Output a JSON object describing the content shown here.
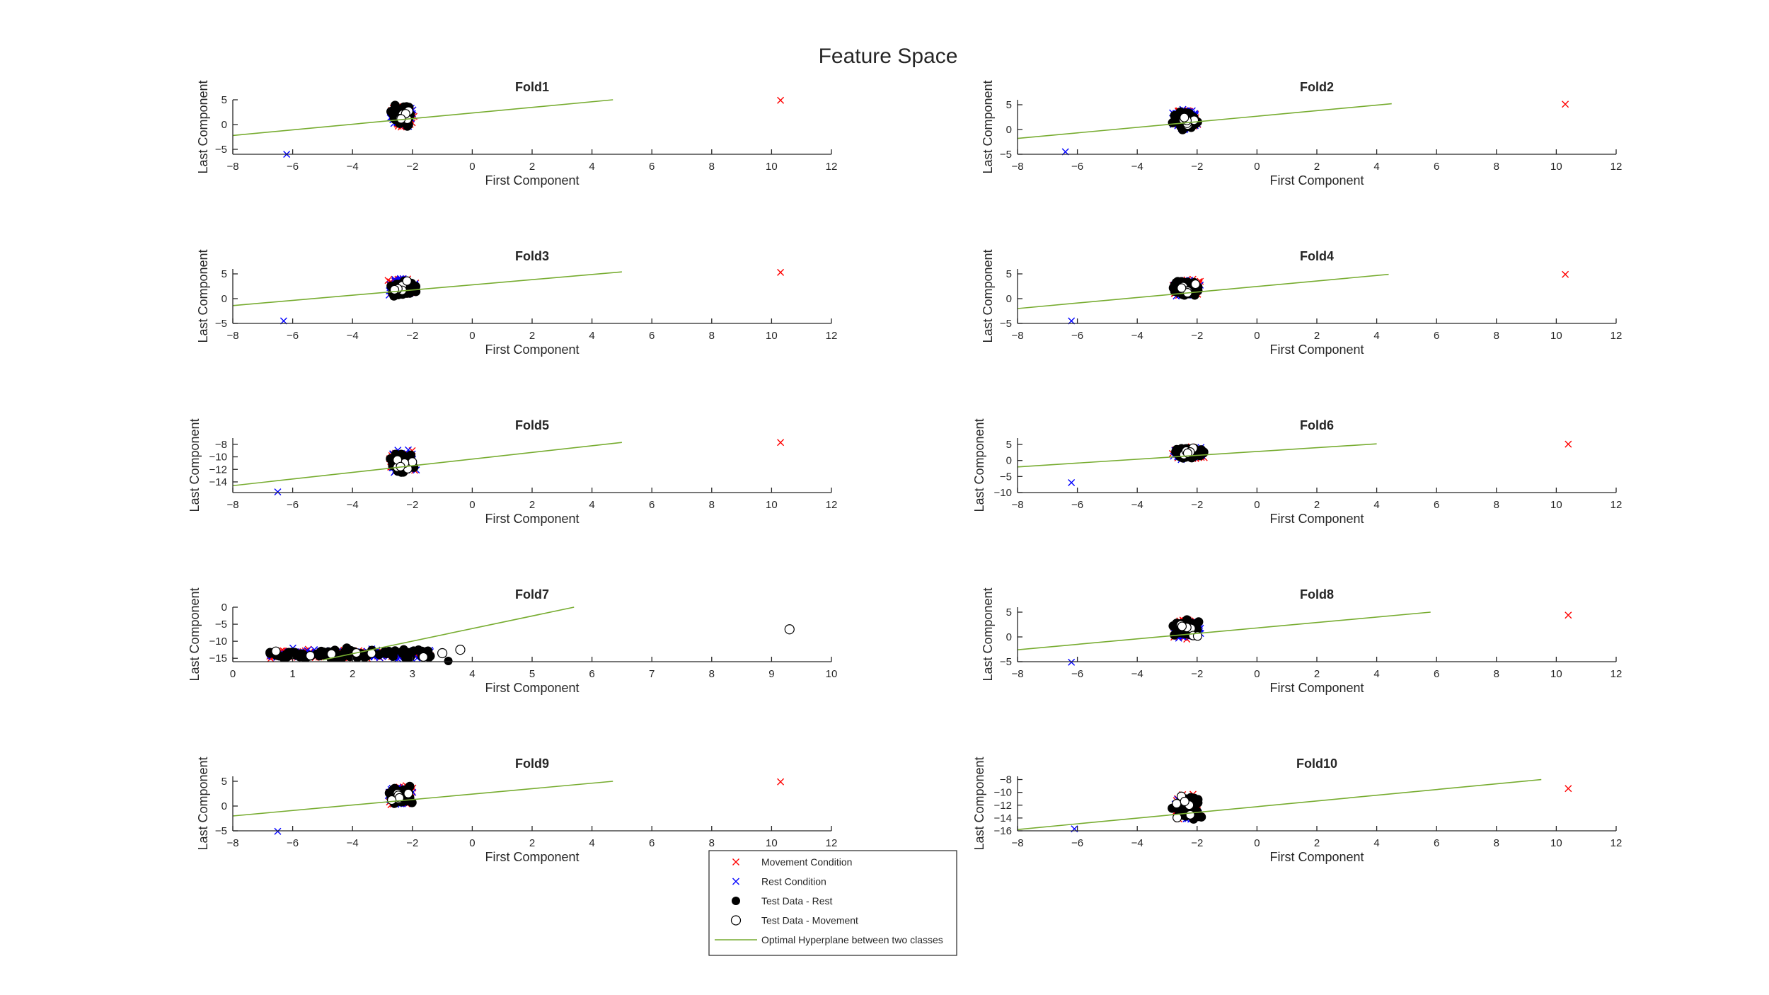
{
  "figure": {
    "title": "Feature Space"
  },
  "legend": {
    "entries": [
      {
        "label": "Movement Condition",
        "marker": "x",
        "color": "#ff0000"
      },
      {
        "label": "Rest Condition",
        "marker": "x",
        "color": "#0000ff"
      },
      {
        "label": "Test Data - Rest",
        "marker": "filled-circle",
        "color": "#000000"
      },
      {
        "label": "Test Data - Movement",
        "marker": "open-circle",
        "color": "#000000"
      },
      {
        "label": "Optimal Hyperplane between two classes",
        "marker": "line",
        "color": "#77ac30"
      }
    ]
  },
  "colors": {
    "movement": "#ff0000",
    "rest": "#0000ff",
    "test": "#000000",
    "hyperplane": "#77ac30"
  },
  "chart_data": [
    {
      "type": "scatter",
      "title": "Fold1",
      "xlabel": "First Component",
      "ylabel": "Last Component",
      "xlim": [
        -8,
        12
      ],
      "ylim": [
        -6,
        5
      ],
      "xticks": [
        -8,
        -6,
        -4,
        -2,
        0,
        2,
        4,
        6,
        8,
        10,
        12
      ],
      "yticks": [
        -5,
        0,
        5
      ],
      "cluster": {
        "x": [
          -2.8,
          -1.9
        ],
        "y": [
          -0.5,
          4
        ]
      },
      "outliers": [
        {
          "x": 10.3,
          "y": 4.9,
          "class": "movement"
        },
        {
          "x": -6.2,
          "y": -6,
          "class": "rest"
        }
      ],
      "hyperplane": {
        "x": [
          -8,
          4.7
        ],
        "y": [
          -2.2,
          5.0
        ]
      }
    },
    {
      "type": "scatter",
      "title": "Fold2",
      "xlabel": "First Component",
      "ylabel": "Last Component",
      "xlim": [
        -8,
        12
      ],
      "ylim": [
        -5,
        6
      ],
      "xticks": [
        -8,
        -6,
        -4,
        -2,
        0,
        2,
        4,
        6,
        8,
        10,
        12
      ],
      "yticks": [
        -5,
        0,
        5
      ],
      "cluster": {
        "x": [
          -2.9,
          -1.9
        ],
        "y": [
          -0.2,
          4.2
        ]
      },
      "outliers": [
        {
          "x": 10.3,
          "y": 5.1,
          "class": "movement"
        },
        {
          "x": -6.4,
          "y": -4.5,
          "class": "rest"
        }
      ],
      "hyperplane": {
        "x": [
          -8,
          4.5
        ],
        "y": [
          -1.8,
          5.2
        ]
      }
    },
    {
      "type": "scatter",
      "title": "Fold3",
      "xlabel": "First Component",
      "ylabel": "Last Component",
      "xlim": [
        -8,
        12
      ],
      "ylim": [
        -5,
        6
      ],
      "xticks": [
        -8,
        -6,
        -4,
        -2,
        0,
        2,
        4,
        6,
        8,
        10,
        12
      ],
      "yticks": [
        -5,
        0,
        5
      ],
      "cluster": {
        "x": [
          -2.9,
          -1.8
        ],
        "y": [
          0.3,
          4.3
        ]
      },
      "outliers": [
        {
          "x": 10.3,
          "y": 5.3,
          "class": "movement"
        },
        {
          "x": -6.3,
          "y": -4.5,
          "class": "rest"
        }
      ],
      "hyperplane": {
        "x": [
          -8,
          5.0
        ],
        "y": [
          -1.4,
          5.4
        ]
      }
    },
    {
      "type": "scatter",
      "title": "Fold4",
      "xlabel": "First Component",
      "ylabel": "Last Component",
      "xlim": [
        -8,
        12
      ],
      "ylim": [
        -5,
        6
      ],
      "xticks": [
        -8,
        -6,
        -4,
        -2,
        0,
        2,
        4,
        6,
        8,
        10,
        12
      ],
      "yticks": [
        -5,
        0,
        5
      ],
      "cluster": {
        "x": [
          -2.9,
          -1.8
        ],
        "y": [
          0.3,
          4
        ]
      },
      "outliers": [
        {
          "x": 10.3,
          "y": 4.9,
          "class": "movement"
        },
        {
          "x": -6.2,
          "y": -4.5,
          "class": "rest"
        }
      ],
      "hyperplane": {
        "x": [
          -8,
          4.4
        ],
        "y": [
          -2.0,
          4.9
        ]
      }
    },
    {
      "type": "scatter",
      "title": "Fold5",
      "xlabel": "First Component",
      "ylabel": "Last Component",
      "xlim": [
        -8,
        12
      ],
      "ylim": [
        -15.7,
        -7
      ],
      "xticks": [
        -8,
        -6,
        -4,
        -2,
        0,
        2,
        4,
        6,
        8,
        10,
        12
      ],
      "yticks": [
        -14,
        -12,
        -10,
        -8
      ],
      "cluster": {
        "x": [
          -2.9,
          -1.8
        ],
        "y": [
          -12.8,
          -8.8
        ]
      },
      "outliers": [
        {
          "x": 10.3,
          "y": -7.7,
          "class": "movement"
        },
        {
          "x": -6.5,
          "y": -15.6,
          "class": "rest"
        }
      ],
      "hyperplane": {
        "x": [
          -8,
          5.0
        ],
        "y": [
          -14.6,
          -7.7
        ]
      }
    },
    {
      "type": "scatter",
      "title": "Fold6",
      "xlabel": "First Component",
      "ylabel": "Last Component",
      "xlim": [
        -8,
        12
      ],
      "ylim": [
        -10,
        7
      ],
      "xticks": [
        -8,
        -6,
        -4,
        -2,
        0,
        2,
        4,
        6,
        8,
        10,
        12
      ],
      "yticks": [
        -10,
        -5,
        0,
        5
      ],
      "cluster": {
        "x": [
          -2.9,
          -1.7
        ],
        "y": [
          0.3,
          4.3
        ]
      },
      "outliers": [
        {
          "x": 10.4,
          "y": 5.1,
          "class": "movement"
        },
        {
          "x": -6.2,
          "y": -6.9,
          "class": "rest"
        }
      ],
      "hyperplane": {
        "x": [
          -8,
          4.0
        ],
        "y": [
          -2.0,
          5.2
        ]
      }
    },
    {
      "type": "scatter",
      "title": "Fold7",
      "xlabel": "First Component",
      "ylabel": "Last Component",
      "xlim": [
        0,
        10
      ],
      "ylim": [
        -16,
        0
      ],
      "xticks": [
        0,
        1,
        2,
        3,
        4,
        5,
        6,
        7,
        8,
        9,
        10
      ],
      "yticks": [
        -15,
        -10,
        -5,
        0
      ],
      "cluster": {
        "x": [
          0.6,
          3.3
        ],
        "y": [
          -15.5,
          -12
        ]
      },
      "outliers": [
        {
          "x": 9.3,
          "y": -6.5,
          "class": "test-movement"
        },
        {
          "x": 3.8,
          "y": -12.5,
          "class": "test-movement"
        },
        {
          "x": 3.6,
          "y": -15.8,
          "class": "test-rest"
        },
        {
          "x": 3.5,
          "y": -13.5,
          "class": "test-movement"
        }
      ],
      "hyperplane": {
        "x": [
          1.5,
          5.7
        ],
        "y": [
          -15.5,
          0
        ]
      }
    },
    {
      "type": "scatter",
      "title": "Fold8",
      "xlabel": "First Component",
      "ylabel": "Last Component",
      "xlim": [
        -8,
        12
      ],
      "ylim": [
        -5,
        6
      ],
      "xticks": [
        -8,
        -6,
        -4,
        -2,
        0,
        2,
        4,
        6,
        8,
        10,
        12
      ],
      "yticks": [
        -5,
        0,
        5
      ],
      "cluster": {
        "x": [
          -2.9,
          -1.8
        ],
        "y": [
          -0.5,
          3.7
        ]
      },
      "outliers": [
        {
          "x": 10.4,
          "y": 4.4,
          "class": "movement"
        },
        {
          "x": -6.2,
          "y": -5.1,
          "class": "rest"
        }
      ],
      "hyperplane": {
        "x": [
          -8,
          5.8
        ],
        "y": [
          -2.6,
          5.0
        ]
      }
    },
    {
      "type": "scatter",
      "title": "Fold9",
      "xlabel": "First Component",
      "ylabel": "Last Component",
      "xlim": [
        -8,
        12
      ],
      "ylim": [
        -5,
        6
      ],
      "xticks": [
        -8,
        -6,
        -4,
        -2,
        0,
        2,
        4,
        6,
        8,
        10,
        12
      ],
      "yticks": [
        -5,
        0,
        5
      ],
      "cluster": {
        "x": [
          -2.9,
          -1.9
        ],
        "y": [
          0,
          4.2
        ]
      },
      "outliers": [
        {
          "x": 10.3,
          "y": 4.9,
          "class": "movement"
        },
        {
          "x": -6.5,
          "y": -5.1,
          "class": "rest"
        }
      ],
      "hyperplane": {
        "x": [
          -8,
          4.7
        ],
        "y": [
          -2.0,
          5.0
        ]
      }
    },
    {
      "type": "scatter",
      "title": "Fold10",
      "xlabel": "First Component",
      "ylabel": "Last Component",
      "xlim": [
        -8,
        12
      ],
      "ylim": [
        -16,
        -7.5
      ],
      "xticks": [
        -8,
        -6,
        -4,
        -2,
        0,
        2,
        4,
        6,
        8,
        10,
        12
      ],
      "yticks": [
        -16,
        -14,
        -12,
        -10,
        -8
      ],
      "cluster": {
        "x": [
          -2.9,
          -1.8
        ],
        "y": [
          -14.5,
          -10.2
        ]
      },
      "outliers": [
        {
          "x": 10.4,
          "y": -9.4,
          "class": "movement"
        },
        {
          "x": -6.1,
          "y": -15.7,
          "class": "rest"
        }
      ],
      "hyperplane": {
        "x": [
          -8,
          9.5
        ],
        "y": [
          -15.8,
          -8.0
        ]
      }
    }
  ]
}
